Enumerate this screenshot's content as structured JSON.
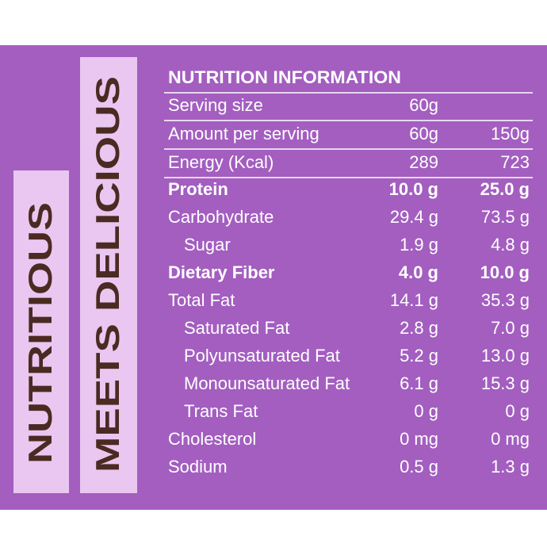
{
  "side_labels": [
    "NUTRITIOUS",
    "MEETS DELICIOUS"
  ],
  "table": {
    "title": "NUTRITION INFORMATION",
    "rows": [
      [
        "Serving size",
        "60g"
      ],
      [
        "Amount per serving",
        "60g",
        "150g"
      ],
      [
        "Energy (Kcal)",
        "289",
        "723"
      ],
      [
        "Protein",
        "10.0 g",
        "25.0 g"
      ],
      [
        "Carbohydrate",
        "29.4 g",
        "73.5 g"
      ],
      [
        "Sugar",
        "1.9 g",
        "4.8 g"
      ],
      [
        "Dietary Fiber",
        "4.0 g",
        "10.0 g"
      ],
      [
        "Total Fat",
        "14.1 g",
        "35.3 g"
      ],
      [
        "Saturated Fat",
        "2.8 g",
        "7.0 g"
      ],
      [
        "Polyunsaturated Fat",
        "5.2 g",
        "13.0 g"
      ],
      [
        "Monounsaturated Fat",
        "6.1 g",
        "15.3 g"
      ],
      [
        "Trans Fat",
        "0 g",
        "0 g"
      ],
      [
        "Cholesterol",
        "0 mg",
        "0 mg"
      ],
      [
        "Sodium",
        "0.5 g",
        "1.3 g"
      ]
    ]
  }
}
